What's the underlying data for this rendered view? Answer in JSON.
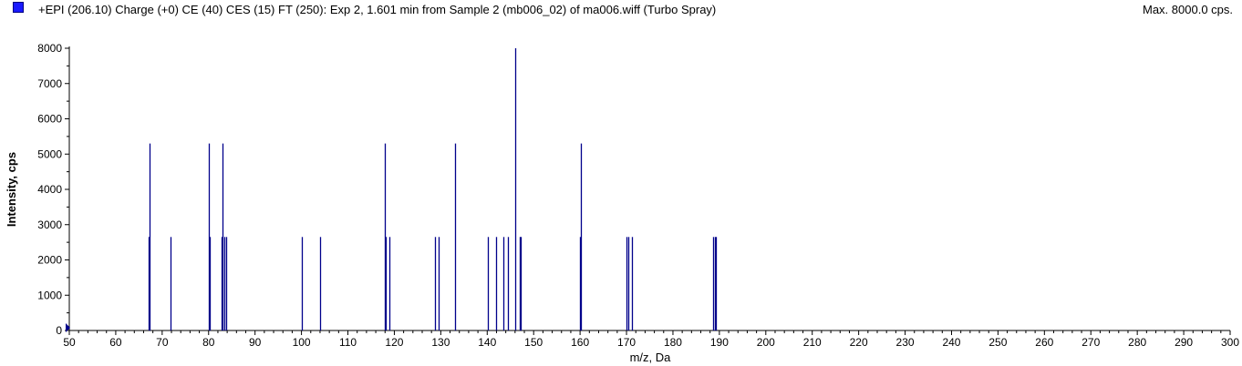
{
  "header": {
    "title": "+EPI (206.10) Charge (+0) CE (40) CES (15) FT (250): Exp 2, 1.601 min from Sample 2 (mb006_02) of ma006.wiff (Turbo Spray)",
    "max_label": "Max. 8000.0 cps."
  },
  "colors": {
    "series": "#00008b",
    "legend": "#1a1aff"
  },
  "chart_data": {
    "type": "bar",
    "subtype": "mass-spectrum-sticks",
    "title": "+EPI (206.10) Charge (+0) CE (40) CES (15) FT (250): Exp 2, 1.601 min from Sample 2 (mb006_02) of ma006.wiff (Turbo Spray)",
    "xlabel": "m/z, Da",
    "ylabel": "Intensity, cps",
    "xlim": [
      50,
      300
    ],
    "ylim": [
      0,
      8000
    ],
    "x_ticks": [
      50,
      60,
      70,
      80,
      90,
      100,
      110,
      120,
      130,
      140,
      150,
      160,
      170,
      180,
      190,
      200,
      210,
      220,
      230,
      240,
      250,
      260,
      270,
      280,
      290,
      300
    ],
    "y_ticks": [
      0,
      1000,
      2000,
      3000,
      4000,
      5000,
      6000,
      7000,
      8000
    ],
    "grid": false,
    "series": [
      {
        "x": [
          67.0,
          67.3,
          71.8,
          80.0,
          80.2,
          82.7,
          83.0,
          83.4,
          83.7,
          100.1,
          104.1,
          118.0,
          118.2,
          118.9,
          128.8,
          129.6,
          133.1,
          140.2,
          142.0,
          143.5,
          144.5,
          146.0,
          147.0,
          147.2,
          159.9,
          160.1,
          170.0,
          170.3,
          171.2,
          188.6,
          189.0,
          189.3
        ],
        "y": [
          2650,
          5300,
          2650,
          5300,
          2650,
          2650,
          5300,
          2650,
          2650,
          2650,
          2650,
          5300,
          2650,
          2650,
          2650,
          2650,
          5300,
          2650,
          2650,
          2650,
          2650,
          8000,
          2650,
          2650,
          2650,
          5300,
          2650,
          2650,
          2650,
          2650,
          2650,
          2650
        ]
      }
    ]
  }
}
